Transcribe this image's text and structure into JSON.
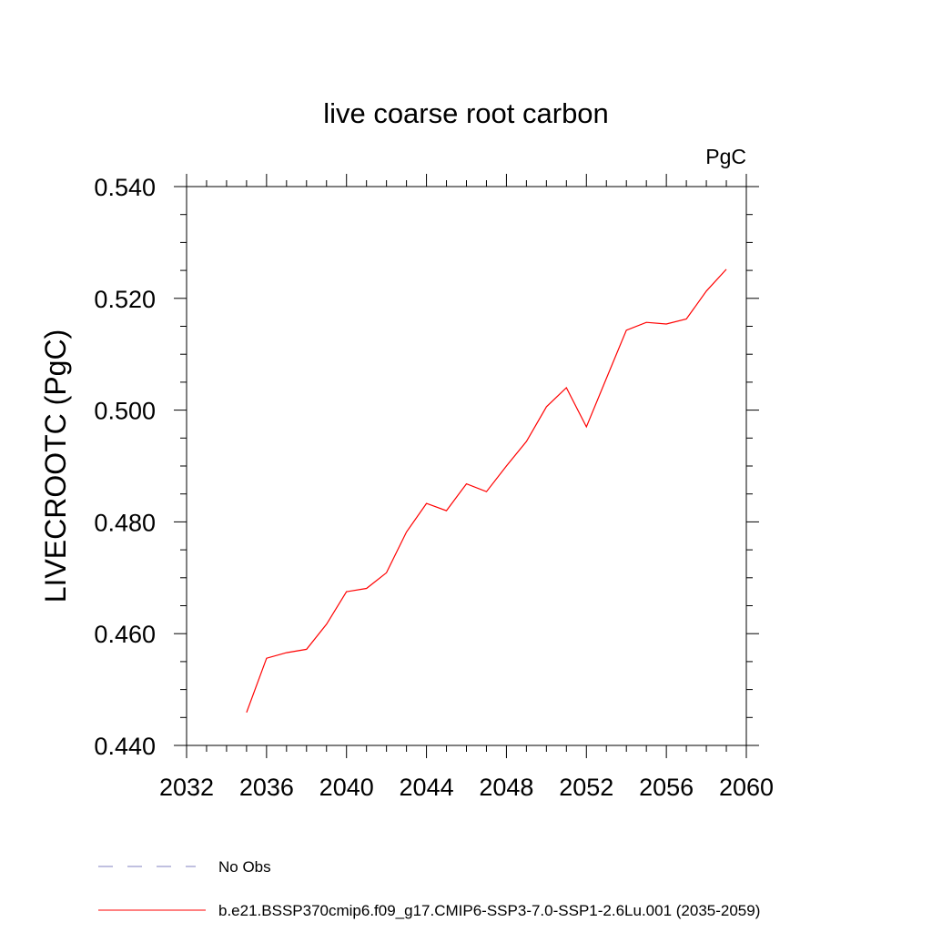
{
  "chart_data": {
    "type": "line",
    "title": "live coarse root carbon",
    "units_label": "PgC",
    "ylabel": "LIVECROOTC  (PgC)",
    "xlabel": "",
    "xlim": [
      2032,
      2060
    ],
    "ylim": [
      0.44,
      0.54
    ],
    "x_ticks": [
      "2032",
      "2036",
      "2040",
      "2044",
      "2048",
      "2052",
      "2056",
      "2060"
    ],
    "y_ticks": [
      "0.440",
      "0.460",
      "0.480",
      "0.500",
      "0.520",
      "0.540"
    ],
    "grid": false,
    "series": [
      {
        "name": "b.e21.BSSP370cmip6.f09_g17.CMIP6-SSP3-7.0-SSP1-2.6Lu.001 (2035-2059)",
        "color": "#ff0000",
        "x": [
          2035,
          2036,
          2037,
          2038,
          2039,
          2040,
          2041,
          2042,
          2043,
          2044,
          2045,
          2046,
          2047,
          2048,
          2049,
          2050,
          2051,
          2052,
          2053,
          2054,
          2055,
          2056,
          2057,
          2058,
          2059
        ],
        "values": [
          0.4459,
          0.4556,
          0.4566,
          0.4572,
          0.4617,
          0.4675,
          0.4681,
          0.4709,
          0.4782,
          0.4833,
          0.482,
          0.4868,
          0.4854,
          0.49,
          0.4944,
          0.5006,
          0.504,
          0.497,
          0.5057,
          0.5143,
          0.5157,
          0.5154,
          0.5163,
          0.5213,
          0.5252
        ]
      }
    ],
    "legend": [
      {
        "label": "No Obs",
        "color": "#8080c0",
        "style": "dashed"
      },
      {
        "label": "b.e21.BSSP370cmip6.f09_g17.CMIP6-SSP3-7.0-SSP1-2.6Lu.001 (2035-2059)",
        "color": "#ff0000",
        "style": "solid"
      }
    ],
    "legend_position": "bottom-left"
  }
}
